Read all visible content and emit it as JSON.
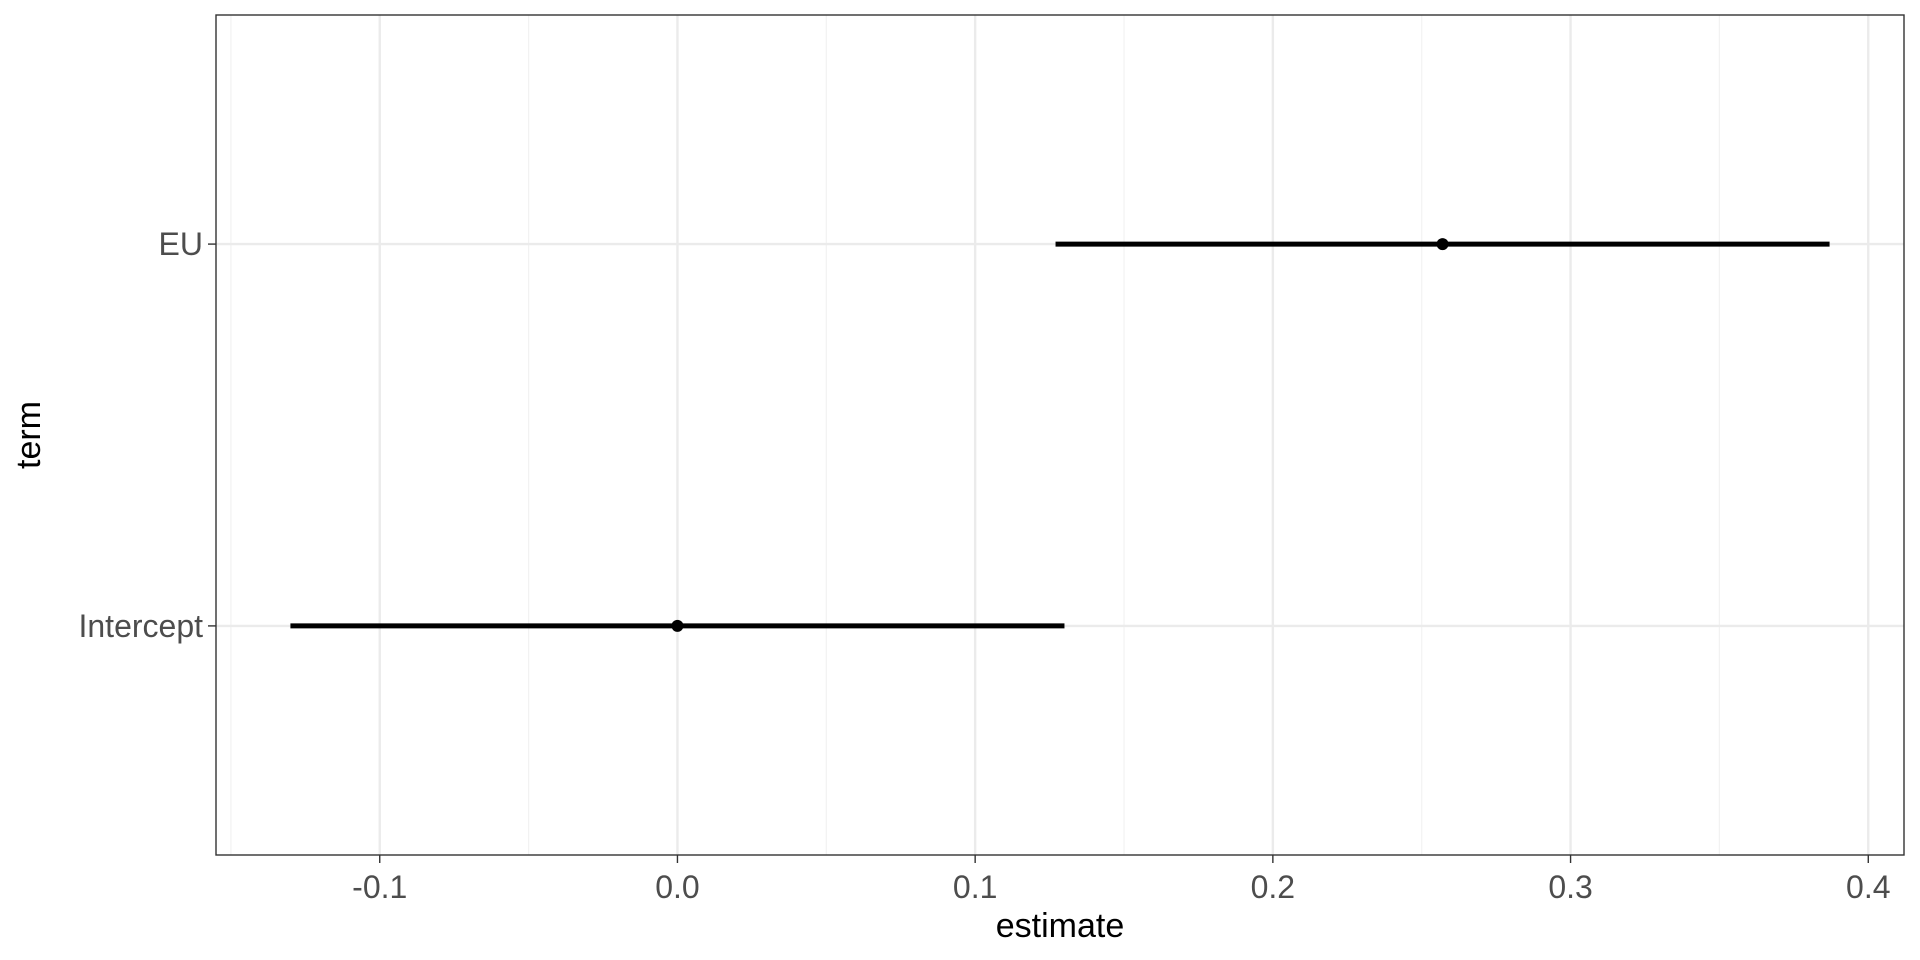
{
  "chart_data": {
    "type": "scatter",
    "subtype": "coefficient-plot",
    "title": "",
    "xlabel": "estimate",
    "ylabel": "term",
    "xlim": [
      -0.155,
      0.412
    ],
    "x_ticks": [
      -0.1,
      0.0,
      0.1,
      0.2,
      0.3,
      0.4
    ],
    "x_tick_labels": [
      "-0.1",
      "0.0",
      "0.1",
      "0.2",
      "0.3",
      "0.4"
    ],
    "categories": [
      "Intercept",
      "EU"
    ],
    "series": [
      {
        "points": [
          {
            "term": "EU",
            "estimate": 0.257,
            "conf_low": 0.127,
            "conf_high": 0.387
          },
          {
            "term": "Intercept",
            "estimate": 0.0,
            "conf_low": -0.13,
            "conf_high": 0.13
          }
        ]
      }
    ],
    "grid": true,
    "legend": "none",
    "colors": {
      "mark": "#000000",
      "grid_major": "#ebebeb",
      "grid_minor": "#f2f2f2",
      "panel_border": "#333333",
      "tick_text": "#4d4d4d"
    }
  }
}
